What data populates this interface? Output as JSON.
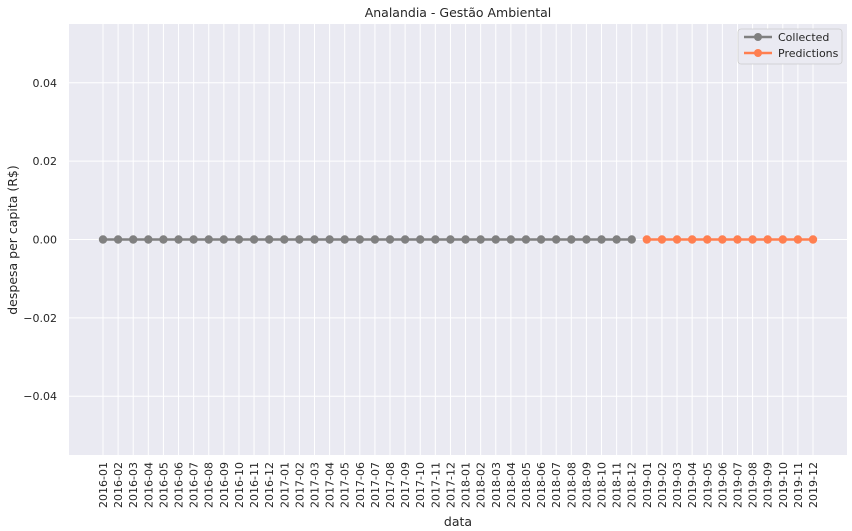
{
  "chart_data": {
    "type": "line",
    "title": "Analandia - Gestão Ambiental",
    "xlabel": "data",
    "ylabel": "despesa per capita (R$)",
    "ylim": [
      -0.055,
      0.055
    ],
    "yticks": [
      -0.04,
      -0.02,
      0.0,
      0.02,
      0.04
    ],
    "ytick_labels": [
      "−0.04",
      "−0.02",
      "0.00",
      "0.02",
      "0.04"
    ],
    "grid": true,
    "legend_position": "top-right",
    "categories": [
      "2016-01",
      "2016-02",
      "2016-03",
      "2016-04",
      "2016-05",
      "2016-06",
      "2016-07",
      "2016-08",
      "2016-09",
      "2016-10",
      "2016-11",
      "2016-12",
      "2017-01",
      "2017-02",
      "2017-03",
      "2017-04",
      "2017-05",
      "2017-06",
      "2017-07",
      "2017-08",
      "2017-09",
      "2017-10",
      "2017-11",
      "2017-12",
      "2018-01",
      "2018-02",
      "2018-03",
      "2018-04",
      "2018-05",
      "2018-06",
      "2018-07",
      "2018-08",
      "2018-09",
      "2018-10",
      "2018-11",
      "2018-12",
      "2019-01",
      "2019-02",
      "2019-03",
      "2019-04",
      "2019-05",
      "2019-06",
      "2019-07",
      "2019-08",
      "2019-09",
      "2019-10",
      "2019-11",
      "2019-12"
    ],
    "series": [
      {
        "name": "Collected",
        "color": "#808080",
        "x": [
          "2016-01",
          "2016-02",
          "2016-03",
          "2016-04",
          "2016-05",
          "2016-06",
          "2016-07",
          "2016-08",
          "2016-09",
          "2016-10",
          "2016-11",
          "2016-12",
          "2017-01",
          "2017-02",
          "2017-03",
          "2017-04",
          "2017-05",
          "2017-06",
          "2017-07",
          "2017-08",
          "2017-09",
          "2017-10",
          "2017-11",
          "2017-12",
          "2018-01",
          "2018-02",
          "2018-03",
          "2018-04",
          "2018-05",
          "2018-06",
          "2018-07",
          "2018-08",
          "2018-09",
          "2018-10",
          "2018-11",
          "2018-12"
        ],
        "values": [
          0,
          0,
          0,
          0,
          0,
          0,
          0,
          0,
          0,
          0,
          0,
          0,
          0,
          0,
          0,
          0,
          0,
          0,
          0,
          0,
          0,
          0,
          0,
          0,
          0,
          0,
          0,
          0,
          0,
          0,
          0,
          0,
          0,
          0,
          0,
          0
        ]
      },
      {
        "name": "Predictions",
        "color": "#ff7f50",
        "x": [
          "2019-01",
          "2019-02",
          "2019-03",
          "2019-04",
          "2019-05",
          "2019-06",
          "2019-07",
          "2019-08",
          "2019-09",
          "2019-10",
          "2019-11",
          "2019-12"
        ],
        "values": [
          0,
          0,
          0,
          0,
          0,
          0,
          0,
          0,
          0,
          0,
          0,
          0
        ]
      }
    ]
  }
}
